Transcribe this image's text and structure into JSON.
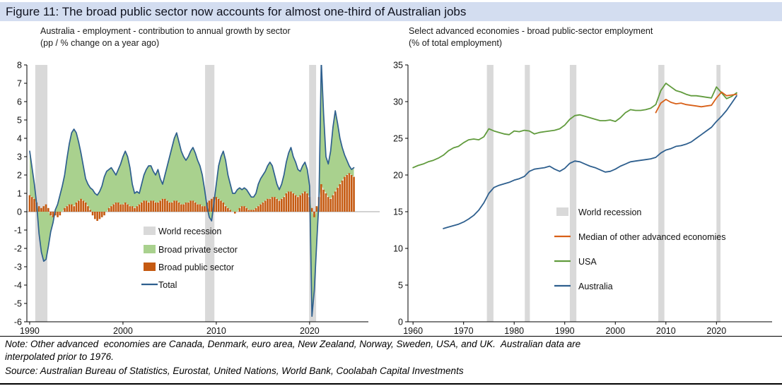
{
  "figure_title": "Figure 11: The broad public sector now accounts for almost one-third of Australian jobs",
  "note": {
    "line1": "Note: Other advanced  economies are Canada, Denmark, euro area, New Zealand, Norway, Sweden, USA, and UK.  Australian data are",
    "line2": "interpolated prior to 1976."
  },
  "source": "Source: Australian Bureau of Statistics, Eurostat, United Nations, World Bank, Coolabah Capital Investments",
  "colors": {
    "header_bg": "#d3ddf0",
    "recession_gray": "#d9d9d9",
    "private_green": "#a9d18e",
    "public_orange": "#c55a11",
    "total_blue": "#2e5f8e",
    "usa_green": "#619b3d",
    "median_orange": "#d86018",
    "australia_blue": "#2e5f8e",
    "zero_line": "#a6a6a6",
    "axis_black": "#000000"
  },
  "chart_data": [
    {
      "type": "bar",
      "subtype": "stacked contributions: orange bars (public) + green area (private) + blue total line",
      "title_line1": "Australia - employment - contribution to annual growth by sector",
      "title_line2": "(pp / % change on a year ago)",
      "xlabel": "",
      "ylabel": "",
      "xlim": [
        1989.7,
        2026.3
      ],
      "ylim": [
        -6,
        8
      ],
      "x_ticks": [
        1990,
        2000,
        2010,
        2020
      ],
      "y_ticks": [
        -6,
        -5,
        -4,
        -3,
        -2,
        -1,
        0,
        1,
        2,
        3,
        4,
        5,
        6,
        7,
        8
      ],
      "grid": false,
      "x_start": 1990.0,
      "x_step": 0.25,
      "recessions": [
        [
          1990.6,
          1991.9
        ],
        [
          2008.8,
          2009.8
        ],
        [
          2019.95,
          2020.7
        ]
      ],
      "series": {
        "total": [
          3.3,
          2.4,
          1.5,
          0.4,
          -1.2,
          -2.2,
          -2.7,
          -2.6,
          -1.9,
          -1.1,
          -0.6,
          0.1,
          0.4,
          0.9,
          1.4,
          2.0,
          2.9,
          3.7,
          4.3,
          4.5,
          4.3,
          3.8,
          3.2,
          2.5,
          1.8,
          1.5,
          1.3,
          1.2,
          1.0,
          0.9,
          1.1,
          1.4,
          1.9,
          2.2,
          2.3,
          2.4,
          2.2,
          2.0,
          2.3,
          2.6,
          3.0,
          3.3,
          3.0,
          2.4,
          1.5,
          1.0,
          1.1,
          1.0,
          1.5,
          2.0,
          2.3,
          2.5,
          2.5,
          2.2,
          2.0,
          2.3,
          1.8,
          1.5,
          2.0,
          2.5,
          3.0,
          3.5,
          4.0,
          4.3,
          3.8,
          3.3,
          3.0,
          2.8,
          3.0,
          3.3,
          3.5,
          3.2,
          2.8,
          2.5,
          2.0,
          1.2,
          0.3,
          -0.3,
          -0.5,
          0.5,
          1.5,
          2.5,
          3.0,
          3.3,
          2.8,
          2.0,
          1.5,
          1.0,
          1.0,
          1.2,
          1.3,
          1.2,
          1.3,
          1.2,
          1.0,
          0.8,
          0.8,
          1.0,
          1.5,
          1.8,
          2.0,
          2.2,
          2.5,
          2.7,
          2.5,
          2.0,
          1.5,
          1.2,
          1.5,
          2.0,
          2.7,
          3.2,
          3.5,
          3.0,
          2.7,
          2.3,
          2.2,
          2.5,
          2.7,
          2.3,
          1.4,
          -5.7,
          -4.3,
          -1.8,
          0.6,
          8.2,
          5.3,
          3.0,
          2.6,
          3.3,
          4.6,
          5.5,
          4.8,
          4.0,
          3.5,
          3.1,
          2.8,
          2.5,
          2.3,
          2.4
        ],
        "broad_public_sector": [
          0.9,
          0.8,
          0.7,
          0.5,
          0.3,
          0.2,
          0.3,
          0.4,
          0.2,
          -0.2,
          -0.3,
          -0.2,
          -0.3,
          -0.2,
          0.0,
          0.2,
          0.3,
          0.4,
          0.4,
          0.3,
          0.5,
          0.6,
          0.7,
          0.6,
          0.5,
          0.3,
          0.1,
          -0.2,
          -0.4,
          -0.5,
          -0.4,
          -0.3,
          -0.2,
          0.0,
          0.2,
          0.3,
          0.4,
          0.5,
          0.5,
          0.4,
          0.4,
          0.5,
          0.4,
          0.3,
          0.3,
          0.2,
          0.3,
          0.4,
          0.5,
          0.6,
          0.6,
          0.5,
          0.6,
          0.6,
          0.5,
          0.5,
          0.6,
          0.7,
          0.7,
          0.6,
          0.5,
          0.5,
          0.6,
          0.6,
          0.5,
          0.4,
          0.4,
          0.5,
          0.5,
          0.6,
          0.6,
          0.5,
          0.4,
          0.4,
          0.3,
          0.3,
          0.5,
          0.6,
          0.7,
          0.8,
          0.8,
          0.7,
          0.6,
          0.5,
          0.3,
          0.2,
          0.1,
          0.0,
          -0.1,
          0.0,
          0.2,
          0.3,
          0.3,
          0.2,
          0.1,
          0.1,
          0.1,
          0.2,
          0.3,
          0.4,
          0.5,
          0.6,
          0.7,
          0.7,
          0.8,
          0.8,
          0.7,
          0.6,
          0.7,
          0.8,
          1.0,
          1.1,
          1.1,
          1.0,
          0.9,
          0.8,
          0.9,
          1.0,
          1.1,
          1.0,
          0.8,
          0.2,
          -0.3,
          0.3,
          0.8,
          1.5,
          1.2,
          1.0,
          0.8,
          0.7,
          0.9,
          1.1,
          1.3,
          1.5,
          1.7,
          1.9,
          2.0,
          2.1,
          2.0,
          1.9
        ],
        "broad_private_sector_rule": "private contribution = total - broad_public_sector (green area stacked on orange bars)"
      },
      "legend": [
        {
          "label": "World recession",
          "type": "rect",
          "color_key": "recession_gray"
        },
        {
          "label": "Broad private sector",
          "type": "rect",
          "color_key": "private_green"
        },
        {
          "label": "Broad public sector",
          "type": "rect",
          "color_key": "public_orange"
        },
        {
          "label": "Total",
          "type": "line",
          "color_key": "total_blue"
        }
      ],
      "legend_position": "inside lower-left"
    },
    {
      "type": "line",
      "title_line1": "Select advanced economies - broad public-sector employment",
      "title_line2": "(% of total employment)",
      "xlabel": "",
      "ylabel": "",
      "xlim": [
        1959,
        2031
      ],
      "ylim": [
        0,
        35
      ],
      "x_ticks": [
        1960,
        1970,
        1980,
        1990,
        2000,
        2010,
        2020
      ],
      "y_ticks": [
        0,
        5,
        10,
        15,
        20,
        25,
        30,
        35
      ],
      "grid": false,
      "recessions": [
        [
          1974.6,
          1975.9
        ],
        [
          1982.1,
          1983.1
        ],
        [
          1991.0,
          1992.3
        ],
        [
          2008.5,
          2009.7
        ],
        [
          2020.0,
          2020.8
        ]
      ],
      "series": [
        {
          "name": "USA",
          "color_key": "usa_green",
          "start": 1960,
          "step": 1,
          "values": [
            21.0,
            21.3,
            21.5,
            21.8,
            22.0,
            22.3,
            22.7,
            23.3,
            23.7,
            23.9,
            24.4,
            24.8,
            24.9,
            24.8,
            25.2,
            26.3,
            26.0,
            25.8,
            25.6,
            25.5,
            26.0,
            25.9,
            26.1,
            26.0,
            25.6,
            25.8,
            25.9,
            26.0,
            26.1,
            26.3,
            26.8,
            27.6,
            28.1,
            28.2,
            28.0,
            27.8,
            27.6,
            27.4,
            27.4,
            27.5,
            27.3,
            27.8,
            28.5,
            28.9,
            28.8,
            28.8,
            28.9,
            29.1,
            29.6,
            31.5,
            32.5,
            32.0,
            31.5,
            31.3,
            31.0,
            30.8,
            30.8,
            30.7,
            30.6,
            30.5,
            32.0,
            31.2,
            30.4,
            30.7,
            31.2
          ]
        },
        {
          "name": "Australia",
          "color_key": "australia_blue",
          "start": 1966,
          "step": 1,
          "values": [
            12.7,
            12.9,
            13.1,
            13.3,
            13.6,
            14.0,
            14.5,
            15.2,
            16.2,
            17.5,
            18.3,
            18.6,
            18.8,
            19.0,
            19.3,
            19.5,
            19.8,
            20.5,
            20.8,
            20.9,
            21.0,
            21.2,
            20.8,
            20.5,
            20.9,
            21.6,
            21.9,
            21.8,
            21.5,
            21.2,
            21.0,
            20.7,
            20.4,
            20.5,
            20.8,
            21.2,
            21.5,
            21.8,
            21.9,
            22.0,
            22.1,
            22.2,
            22.4,
            23.0,
            23.4,
            23.6,
            23.9,
            24.0,
            24.2,
            24.5,
            25.0,
            25.5,
            26.0,
            26.5,
            27.3,
            28.0,
            28.8,
            29.8,
            30.8
          ]
        },
        {
          "name": "Median of other advanced economies",
          "color_key": "median_orange",
          "start": 2008,
          "step": 1,
          "values": [
            28.5,
            29.8,
            30.3,
            29.9,
            29.7,
            29.8,
            29.6,
            29.5,
            29.4,
            29.3,
            29.4,
            29.5,
            30.5,
            31.3,
            30.8,
            30.9,
            31.0
          ]
        }
      ],
      "legend": [
        {
          "label": "World recession",
          "type": "rect",
          "color_key": "recession_gray"
        },
        {
          "label": "Median of other advanced economies",
          "type": "line",
          "color_key": "median_orange"
        },
        {
          "label": "USA",
          "type": "line",
          "color_key": "usa_green"
        },
        {
          "label": "Australia",
          "type": "line",
          "color_key": "australia_blue"
        }
      ],
      "legend_position": "inside lower-right"
    }
  ]
}
